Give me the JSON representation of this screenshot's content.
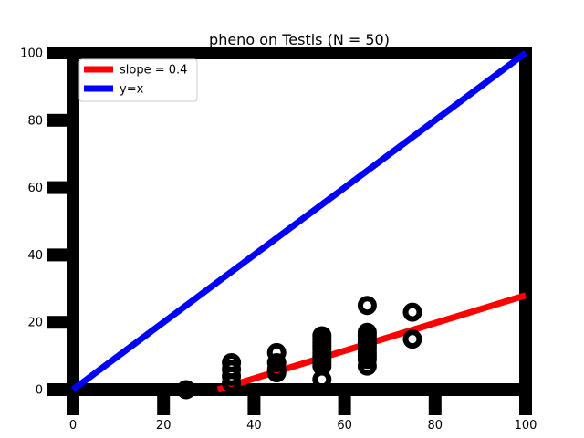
{
  "chart_data": {
    "type": "scatter",
    "title": "pheno on Testis (N = 50)",
    "xlabel": "",
    "ylabel": "",
    "xlim": [
      0,
      100
    ],
    "ylim": [
      0,
      100
    ],
    "xticks": [
      0,
      20,
      40,
      60,
      80,
      100
    ],
    "yticks": [
      0,
      20,
      40,
      60,
      80,
      100
    ],
    "grid": false,
    "legend_position": "top-left",
    "colors": {
      "points": "#000000",
      "fit_line": "#ff0000",
      "identity_line": "#0000ff",
      "frame": "#000000"
    },
    "points": [
      {
        "x": 25,
        "y": 0
      },
      {
        "x": 35,
        "y": 8
      },
      {
        "x": 35,
        "y": 6
      },
      {
        "x": 35,
        "y": 4
      },
      {
        "x": 35,
        "y": 2
      },
      {
        "x": 45,
        "y": 11
      },
      {
        "x": 45,
        "y": 8
      },
      {
        "x": 45,
        "y": 6
      },
      {
        "x": 45,
        "y": 5
      },
      {
        "x": 55,
        "y": 16
      },
      {
        "x": 55,
        "y": 15
      },
      {
        "x": 55,
        "y": 14
      },
      {
        "x": 55,
        "y": 13
      },
      {
        "x": 55,
        "y": 12
      },
      {
        "x": 55,
        "y": 11
      },
      {
        "x": 55,
        "y": 10
      },
      {
        "x": 55,
        "y": 9
      },
      {
        "x": 55,
        "y": 8
      },
      {
        "x": 55,
        "y": 7
      },
      {
        "x": 55,
        "y": 3
      },
      {
        "x": 65,
        "y": 25
      },
      {
        "x": 65,
        "y": 17
      },
      {
        "x": 65,
        "y": 16
      },
      {
        "x": 65,
        "y": 15
      },
      {
        "x": 65,
        "y": 14
      },
      {
        "x": 65,
        "y": 13
      },
      {
        "x": 65,
        "y": 12
      },
      {
        "x": 65,
        "y": 11
      },
      {
        "x": 65,
        "y": 10
      },
      {
        "x": 65,
        "y": 9
      },
      {
        "x": 65,
        "y": 7
      },
      {
        "x": 75,
        "y": 23
      },
      {
        "x": 75,
        "y": 15
      }
    ],
    "lines": [
      {
        "name": "slope = 0.4",
        "x": [
          32,
          100
        ],
        "y": [
          0,
          28
        ]
      },
      {
        "name": "y=x",
        "x": [
          0,
          100
        ],
        "y": [
          0,
          100
        ]
      }
    ]
  }
}
